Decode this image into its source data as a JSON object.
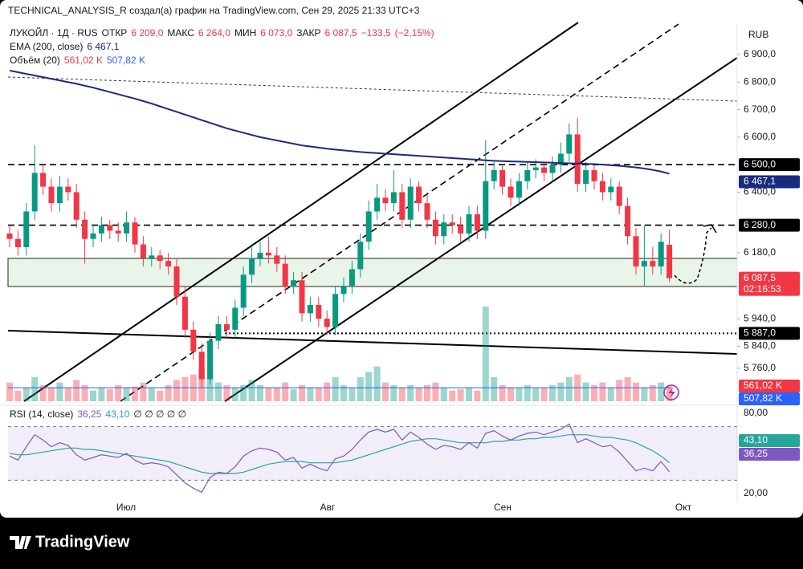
{
  "header": "TECHNICAL_ANALYSIS_R создал(а) график на TradingView.com, Сен 29, 2025 21:33 UTC+3",
  "chart_data": {
    "type": "candlestick",
    "title": "ЛУКОЙЛ · 1Д · RUS",
    "legend": {
      "open_label": "ОТКР",
      "open": {
        "value": 6209,
        "label": "6 209,0"
      },
      "high_label": "МАКС",
      "high": {
        "value": 6264,
        "label": "6 264,0"
      },
      "low_label": "МИН",
      "low": {
        "value": 6073,
        "label": "6 073,0"
      },
      "close_label": "ЗАКР",
      "close": {
        "value": 6087.5,
        "label": "6 087,5"
      },
      "change": {
        "value": -133.5,
        "label": "−133,5"
      },
      "change_pct": {
        "value": -2.15,
        "label": "(−2,15%)"
      }
    },
    "open": [
      6250,
      6230,
      6200,
      6330,
      6470,
      6420,
      6360,
      6420,
      6400,
      6300,
      6230,
      6250,
      6280,
      6260,
      6250,
      6290,
      6210,
      6160,
      6170,
      6150,
      6130,
      6020,
      5900,
      5820,
      5720,
      5860,
      5920,
      5900,
      5980,
      6100,
      6160,
      6180,
      6170,
      6140,
      6060,
      6080,
      5960,
      5990,
      5940,
      5910,
      6030,
      6060,
      6120,
      6220,
      6330,
      6380,
      6360,
      6400,
      6300,
      6420,
      6360,
      6300,
      6240,
      6290,
      6280,
      6250,
      6320,
      6260,
      6440,
      6480,
      6420,
      6380,
      6440,
      6480,
      6490,
      6470,
      6500,
      6540,
      6610,
      6430,
      6480,
      6440,
      6400,
      6420,
      6350,
      6240,
      6130,
      6150,
      6130,
      6209
    ],
    "high": [
      6280,
      6260,
      6360,
      6570,
      6500,
      6450,
      6460,
      6450,
      6430,
      6330,
      6280,
      6310,
      6300,
      6290,
      6330,
      6310,
      6240,
      6200,
      6190,
      6180,
      6160,
      6060,
      5930,
      5850,
      5890,
      5950,
      5950,
      6010,
      6130,
      6200,
      6220,
      6240,
      6200,
      6170,
      6110,
      6110,
      6020,
      6020,
      5970,
      6060,
      6090,
      6150,
      6250,
      6370,
      6430,
      6410,
      6480,
      6430,
      6450,
      6440,
      6390,
      6330,
      6320,
      6320,
      6310,
      6350,
      6350,
      6590,
      6510,
      6500,
      6450,
      6470,
      6510,
      6520,
      6510,
      6530,
      6580,
      6650,
      6670,
      6510,
      6500,
      6470,
      6450,
      6440,
      6380,
      6270,
      6280,
      6200,
      6250,
      6264
    ],
    "low": [
      6200,
      6170,
      6170,
      6300,
      6390,
      6330,
      6330,
      6370,
      6270,
      6140,
      6200,
      6220,
      6230,
      6220,
      6220,
      6180,
      6130,
      6130,
      6120,
      6100,
      5990,
      5870,
      5790,
      5690,
      5700,
      5830,
      5870,
      5870,
      5950,
      6070,
      6130,
      6140,
      6110,
      6030,
      6030,
      5930,
      5930,
      5910,
      5880,
      5880,
      6000,
      6030,
      6090,
      6190,
      6300,
      6330,
      6330,
      6270,
      6270,
      6330,
      6270,
      6210,
      6210,
      6250,
      6220,
      6220,
      6230,
      6230,
      6410,
      6390,
      6350,
      6350,
      6410,
      6450,
      6440,
      6440,
      6470,
      6510,
      6400,
      6400,
      6410,
      6370,
      6370,
      6320,
      6210,
      6100,
      6060,
      6100,
      6100,
      6073
    ],
    "close": [
      6230,
      6200,
      6330,
      6470,
      6420,
      6360,
      6420,
      6400,
      6300,
      6230,
      6250,
      6280,
      6260,
      6250,
      6290,
      6210,
      6160,
      6170,
      6150,
      6130,
      6020,
      5900,
      5820,
      5720,
      5860,
      5920,
      5900,
      5980,
      6100,
      6160,
      6180,
      6170,
      6140,
      6060,
      6080,
      5960,
      5990,
      5940,
      5910,
      6030,
      6060,
      6120,
      6220,
      6330,
      6380,
      6360,
      6400,
      6300,
      6420,
      6360,
      6300,
      6240,
      6290,
      6280,
      6250,
      6320,
      6260,
      6440,
      6480,
      6420,
      6380,
      6440,
      6480,
      6490,
      6470,
      6500,
      6540,
      6610,
      6430,
      6480,
      6440,
      6400,
      6420,
      6350,
      6240,
      6130,
      6150,
      6130,
      6220,
      6087.5
    ],
    "up_color": "#089981",
    "down_color": "#f23645",
    "ylim": [
      5640,
      7011
    ],
    "yticks": [
      {
        "value": 6900,
        "label": "6 900,0"
      },
      {
        "value": 6800,
        "label": "6 800,0"
      },
      {
        "value": 6700,
        "label": "6 700,0"
      },
      {
        "value": 6600,
        "label": "6 600,0"
      },
      {
        "value": 6400,
        "label": "6 400,0"
      },
      {
        "value": 6180,
        "label": "6 180,0"
      },
      {
        "value": 5940,
        "label": "5 940,0"
      },
      {
        "value": 5840,
        "label": "5 840,0"
      },
      {
        "value": 5760,
        "label": "5 760,0"
      }
    ],
    "y_axis_label": "RUB",
    "x_labels": [
      "Июл",
      "Авг",
      "Сен",
      "Окт"
    ],
    "levels": [
      {
        "value": 6500,
        "label": "6 500,0"
      },
      {
        "value": 6280,
        "label": "6 280,0"
      },
      {
        "value": 5887,
        "label": "5 887,0"
      }
    ],
    "last_price": {
      "value": 6087.5,
      "label": "6 087,5",
      "countdown": "02:16:53"
    },
    "ema": {
      "name": "EMA (200, close)",
      "color": "#1a2a7e",
      "values": [
        6842,
        6836,
        6830,
        6824,
        6818,
        6812,
        6806,
        6800,
        6794,
        6787,
        6780,
        6772,
        6764,
        6756,
        6748,
        6740,
        6731,
        6722,
        6712,
        6702,
        6692,
        6682,
        6672,
        6662,
        6652,
        6642,
        6632,
        6624,
        6616,
        6608,
        6600,
        6594,
        6588,
        6582,
        6576,
        6570,
        6566,
        6562,
        6558,
        6555,
        6552,
        6549,
        6546,
        6544,
        6542,
        6540,
        6538,
        6536,
        6534,
        6532,
        6530,
        6528,
        6526,
        6524,
        6522,
        6520,
        6518,
        6516,
        6514,
        6513,
        6512,
        6511,
        6510,
        6509,
        6508,
        6507,
        6506,
        6505,
        6504,
        6503,
        6502,
        6500,
        6498,
        6496,
        6493,
        6490,
        6486,
        6481,
        6475,
        6467.1
      ],
      "last": {
        "value": 6467.1,
        "label": "6 467,1"
      }
    },
    "volume": {
      "name": "Объём (20)",
      "ylim": [
        0,
        3600
      ],
      "values": [
        700,
        400,
        500,
        900,
        600,
        500,
        700,
        500,
        800,
        600,
        400,
        500,
        450,
        600,
        500,
        550,
        700,
        500,
        400,
        600,
        800,
        900,
        1000,
        1200,
        1400,
        700,
        600,
        500,
        600,
        800,
        600,
        500,
        500,
        700,
        450,
        600,
        500,
        500,
        700,
        900,
        600,
        500,
        900,
        1100,
        1300,
        700,
        600,
        500,
        600,
        500,
        600,
        700,
        500,
        400,
        450,
        500,
        400,
        3540,
        900,
        600,
        500,
        500,
        600,
        500,
        500,
        600,
        700,
        900,
        1000,
        700,
        600,
        700,
        500,
        800,
        900,
        700,
        500,
        600,
        700,
        561.02
      ],
      "last": {
        "value": 561.02,
        "label": "561,02 K"
      },
      "ma": {
        "value": 507.82,
        "label": "507,82 K",
        "color": "#2962ff"
      }
    },
    "rsi": {
      "name": "RSI (14, close)",
      "color": "#7e57c2",
      "ma_color": "#26a69a",
      "values": [
        48,
        45,
        55,
        64,
        60,
        55,
        58,
        56,
        49,
        45,
        47,
        49,
        48,
        47,
        50,
        45,
        42,
        43,
        42,
        40,
        34,
        28,
        24,
        21,
        32,
        36,
        35,
        40,
        48,
        52,
        54,
        53,
        51,
        45,
        47,
        39,
        42,
        39,
        37,
        46,
        48,
        53,
        60,
        66,
        68,
        66,
        68,
        60,
        66,
        62,
        57,
        53,
        56,
        55,
        53,
        58,
        54,
        65,
        67,
        63,
        60,
        63,
        65,
        66,
        64,
        66,
        68,
        72,
        58,
        61,
        58,
        55,
        56,
        51,
        44,
        37,
        39,
        37,
        44,
        36.25
      ],
      "ma": [
        50,
        49,
        49,
        50,
        51,
        52,
        53,
        54,
        54,
        53,
        53,
        52,
        51,
        50,
        49,
        48,
        47,
        46,
        45,
        44,
        42,
        40,
        38,
        36,
        35,
        35,
        35,
        35,
        36,
        38,
        40,
        42,
        43,
        44,
        44,
        44,
        43,
        43,
        43,
        43,
        44,
        45,
        47,
        49,
        51,
        53,
        55,
        57,
        59,
        60,
        61,
        61,
        60,
        59,
        58,
        58,
        58,
        58,
        59,
        59,
        60,
        60,
        61,
        61,
        62,
        62,
        63,
        64,
        64,
        64,
        63,
        62,
        62,
        61,
        60,
        58,
        55,
        52,
        48,
        43.1
      ],
      "last": {
        "value": 36.25,
        "label": "36,25"
      },
      "ma_last": {
        "value": 43.1,
        "label": "43,10"
      },
      "extra": "∅ ∅ ∅ ∅ ∅",
      "band": [
        30,
        70
      ],
      "ylim": [
        14,
        86
      ],
      "yticks": [
        {
          "value": 80,
          "label": "80,00"
        },
        {
          "value": 20,
          "label": "20,00"
        }
      ]
    }
  },
  "footer": {
    "logo": "TradingView"
  }
}
